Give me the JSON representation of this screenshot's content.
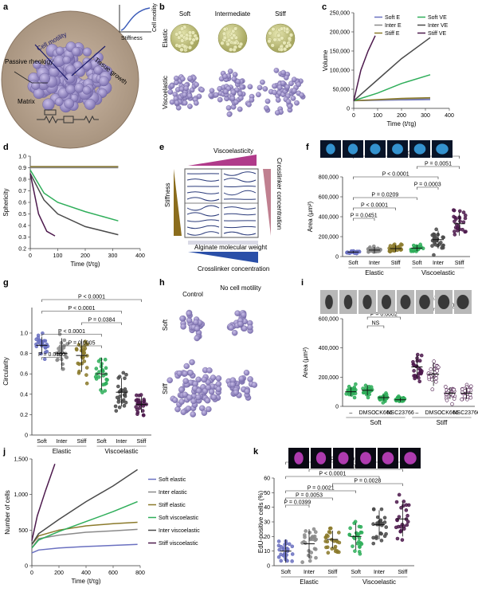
{
  "panels": {
    "a": {
      "letter": "a",
      "labels": [
        "Cell motility",
        "Passive rheology",
        "Tissue growth",
        "Matrix"
      ],
      "inset": {
        "xlabel": "Stiffness",
        "ylabel": "Cell motility"
      }
    },
    "b": {
      "letter": "b",
      "columns": [
        "Soft",
        "Intermediate",
        "Stiff"
      ],
      "rows": [
        "Elastic",
        "Viscoelastic"
      ]
    },
    "e": {
      "letter": "e",
      "top": "Viscoelasticity",
      "left": "Stiffness",
      "right": "Crosslinker concentration",
      "bottom1": "Alginate molecular weight",
      "bottom2": "Crosslinker concentration"
    },
    "h": {
      "letter": "h",
      "columns": [
        "Control",
        "No cell motility"
      ],
      "rows": [
        "Soft",
        "Stiff"
      ]
    }
  },
  "colors": {
    "soft_e": "#6a70c0",
    "inter_e": "#8a8a8a",
    "stiff_e": "#8b7a2b",
    "soft_ve": "#2fae5a",
    "inter_ve": "#4a4a4a",
    "stiff_ve": "#4d1a4d",
    "sphere_elastic": "#d4d49a",
    "sphere_visco": "#9a8fc8"
  },
  "chart_data": [
    {
      "id": "c",
      "type": "line",
      "xlabel": "Time (t/τg)",
      "ylabel": "Volume",
      "xlim": [
        0,
        400
      ],
      "ylim": [
        0,
        250000
      ],
      "xticks": [
        "0",
        "100",
        "200",
        "300",
        "400"
      ],
      "yticks": [
        "0",
        "50,000",
        "100,000",
        "150,000",
        "200,000",
        "250,000"
      ],
      "legend": [
        "Soft E",
        "Inter E",
        "Stiff E",
        "Soft VE",
        "Inter VE",
        "Stiff VE"
      ],
      "series": [
        {
          "name": "Soft E",
          "x": [
            0,
            100,
            200,
            320
          ],
          "y": [
            20000,
            21000,
            22000,
            23000
          ]
        },
        {
          "name": "Inter E",
          "x": [
            0,
            100,
            200,
            320
          ],
          "y": [
            20000,
            22000,
            24000,
            26000
          ]
        },
        {
          "name": "Stiff E",
          "x": [
            0,
            100,
            200,
            320
          ],
          "y": [
            20000,
            23000,
            26000,
            28000
          ]
        },
        {
          "name": "Soft VE",
          "x": [
            0,
            100,
            200,
            320
          ],
          "y": [
            20000,
            40000,
            65000,
            88000
          ]
        },
        {
          "name": "Inter VE",
          "x": [
            0,
            100,
            200,
            320
          ],
          "y": [
            20000,
            75000,
            130000,
            185000
          ]
        },
        {
          "name": "Stiff VE",
          "x": [
            0,
            30,
            60,
            90
          ],
          "y": [
            20000,
            100000,
            150000,
            190000
          ]
        }
      ]
    },
    {
      "id": "d",
      "type": "line",
      "xlabel": "Time (t/τg)",
      "ylabel": "Sphericity",
      "xlim": [
        0,
        400
      ],
      "ylim": [
        0.2,
        1.0
      ],
      "xticks": [
        "0",
        "100",
        "200",
        "300",
        "400"
      ],
      "yticks": [
        "0.2",
        "0.3",
        "0.4",
        "0.5",
        "0.6",
        "0.7",
        "0.8",
        "0.9",
        "1.0"
      ],
      "series": [
        {
          "name": "Soft E",
          "x": [
            0,
            320
          ],
          "y": [
            0.91,
            0.91
          ]
        },
        {
          "name": "Inter E",
          "x": [
            0,
            320
          ],
          "y": [
            0.9,
            0.9
          ]
        },
        {
          "name": "Stiff E",
          "x": [
            0,
            320
          ],
          "y": [
            0.91,
            0.91
          ]
        },
        {
          "name": "Soft VE",
          "x": [
            0,
            50,
            100,
            200,
            320
          ],
          "y": [
            0.88,
            0.68,
            0.6,
            0.52,
            0.44
          ]
        },
        {
          "name": "Inter VE",
          "x": [
            0,
            50,
            100,
            200,
            320
          ],
          "y": [
            0.85,
            0.62,
            0.5,
            0.39,
            0.32
          ]
        },
        {
          "name": "Stiff VE",
          "x": [
            0,
            30,
            60,
            90
          ],
          "y": [
            0.85,
            0.5,
            0.35,
            0.31
          ]
        }
      ]
    },
    {
      "id": "f",
      "type": "scatter",
      "ylabel": "Area (µm²)",
      "ylim": [
        0,
        800000
      ],
      "yticks": [
        "0",
        "200,000",
        "400,000",
        "600,000",
        "800,000"
      ],
      "categories": [
        "Soft",
        "Inter",
        "Stiff",
        "Soft",
        "Inter",
        "Stiff"
      ],
      "groups": [
        "Elastic",
        "Viscoelastic"
      ],
      "means": [
        45000,
        65000,
        80000,
        85000,
        170000,
        330000
      ],
      "sds": [
        10000,
        30000,
        35000,
        30000,
        90000,
        120000
      ],
      "pvalues": [
        {
          "a": 0,
          "b": 5,
          "text": "P < 0.0001"
        },
        {
          "a": 3,
          "b": 5,
          "text": "P = 0.0051"
        },
        {
          "a": 0,
          "b": 4,
          "text": "P < 0.0001"
        },
        {
          "a": 3,
          "b": 4,
          "text": "P = 0.0003"
        },
        {
          "a": 0,
          "b": 3,
          "text": "P = 0.0209"
        },
        {
          "a": 0,
          "b": 2,
          "text": "P < 0.0001"
        },
        {
          "a": 0,
          "b": 1,
          "text": "P = 0.0451"
        }
      ]
    },
    {
      "id": "g",
      "type": "scatter",
      "ylabel": "Circularity",
      "ylim": [
        0,
        1.25
      ],
      "yticks": [
        "0",
        "0.2",
        "0.4",
        "0.6",
        "0.8",
        "1.0"
      ],
      "categories": [
        "Soft",
        "Inter",
        "Stiff",
        "Soft",
        "Inter",
        "Stiff"
      ],
      "groups": [
        "Elastic",
        "Viscoelastic"
      ],
      "means": [
        0.88,
        0.8,
        0.78,
        0.6,
        0.42,
        0.3
      ],
      "sds": [
        0.08,
        0.15,
        0.16,
        0.16,
        0.14,
        0.08
      ],
      "pvalues": [
        {
          "a": 0,
          "b": 5,
          "text": "P < 0.0001"
        },
        {
          "a": 0,
          "b": 4,
          "text": "P < 0.0001"
        },
        {
          "a": 2,
          "b": 4,
          "text": "P = 0.0384"
        },
        {
          "a": 0,
          "b": 3,
          "text": "P < 0.0001"
        },
        {
          "a": 1,
          "b": 3,
          "text": "P = 0.0005"
        },
        {
          "a": 0,
          "b": 1,
          "text": "P = 0.0100"
        }
      ]
    },
    {
      "id": "i",
      "type": "scatter",
      "ylabel": "Area (µm²)",
      "ylim": [
        0,
        600000
      ],
      "yticks": [
        "0",
        "200,000",
        "400,000",
        "600,000"
      ],
      "categories": [
        "–",
        "DMSO",
        "CK666",
        "NSC23766",
        "–",
        "DMSO",
        "CK666",
        "NSC23766"
      ],
      "groups": [
        "Soft",
        "Stiff"
      ],
      "means": [
        100000,
        110000,
        60000,
        45000,
        270000,
        220000,
        90000,
        90000
      ],
      "sds": [
        30000,
        35000,
        20000,
        15000,
        80000,
        80000,
        40000,
        40000
      ],
      "pvalues": [
        {
          "a": 4,
          "b": 6,
          "text": "P < 0.0001"
        },
        {
          "a": 5,
          "b": 7,
          "text": "P = 0.0120"
        },
        {
          "a": 1,
          "b": 3,
          "text": "P = 0.0002"
        },
        {
          "a": 1,
          "b": 2,
          "text": "NS"
        }
      ]
    },
    {
      "id": "j",
      "type": "line",
      "xlabel": "Time (t/τg)",
      "ylabel": "Number of cells",
      "xlim": [
        0,
        800
      ],
      "ylim": [
        0,
        1500
      ],
      "xticks": [
        "0",
        "200",
        "400",
        "600",
        "800"
      ],
      "yticks": [
        "0",
        "500",
        "1,000",
        "1,500"
      ],
      "legend": [
        "Soft elastic",
        "Inter elastic",
        "Stiff elastic",
        "Soft viscoelastic",
        "Inter viscoelastic",
        "Stiff viscoelastic"
      ],
      "series": [
        {
          "name": "Soft elastic",
          "x": [
            0,
            50,
            200,
            400,
            600,
            780
          ],
          "y": [
            180,
            220,
            250,
            270,
            285,
            300
          ]
        },
        {
          "name": "Inter elastic",
          "x": [
            0,
            50,
            200,
            400,
            600,
            780
          ],
          "y": [
            250,
            380,
            430,
            470,
            490,
            510
          ]
        },
        {
          "name": "Stiff elastic",
          "x": [
            0,
            50,
            200,
            400,
            600,
            780
          ],
          "y": [
            300,
            420,
            500,
            560,
            590,
            610
          ]
        },
        {
          "name": "Soft viscoelastic",
          "x": [
            0,
            50,
            200,
            400,
            600,
            780
          ],
          "y": [
            250,
            360,
            480,
            620,
            760,
            900
          ]
        },
        {
          "name": "Inter viscoelastic",
          "x": [
            0,
            50,
            200,
            400,
            600,
            780
          ],
          "y": [
            300,
            450,
            650,
            900,
            1120,
            1350
          ]
        },
        {
          "name": "Stiff viscoelastic",
          "x": [
            0,
            40,
            100,
            170
          ],
          "y": [
            350,
            700,
            1050,
            1430
          ]
        }
      ]
    },
    {
      "id": "k",
      "type": "scatter",
      "ylabel": "EdU-positive cells (%)",
      "ylim": [
        0,
        60
      ],
      "yticks": [
        "0",
        "10",
        "20",
        "30",
        "40",
        "50",
        "60"
      ],
      "categories": [
        "Soft",
        "Inter",
        "Stiff",
        "Soft",
        "Inter",
        "Stiff"
      ],
      "groups": [
        "Elastic",
        "Viscoelastic"
      ],
      "means": [
        10,
        15,
        18,
        20,
        28,
        32
      ],
      "sds": [
        8,
        10,
        6,
        9,
        10,
        12
      ],
      "pvalues": [
        {
          "a": 0,
          "b": 5,
          "text": "P < 0.0001"
        },
        {
          "a": 1,
          "b": 5,
          "text": "P = 0.0009"
        },
        {
          "a": 0,
          "b": 4,
          "text": "P < 0.0001"
        },
        {
          "a": 2,
          "b": 5,
          "text": "P = 0.0028"
        },
        {
          "a": 0,
          "b": 3,
          "text": "P = 0.0021"
        },
        {
          "a": 0,
          "b": 2,
          "text": "P = 0.0053"
        },
        {
          "a": 0,
          "b": 1,
          "text": "P = 0.0399"
        }
      ]
    }
  ]
}
